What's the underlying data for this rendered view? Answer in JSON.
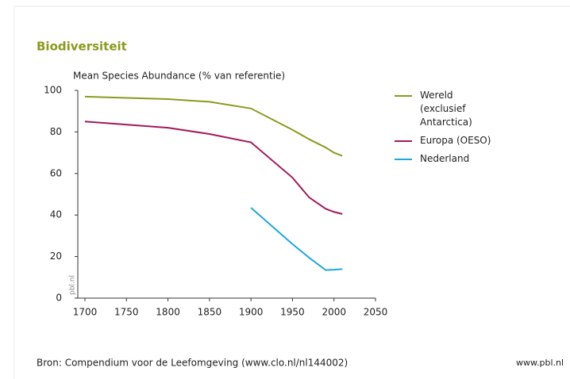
{
  "chart_data": {
    "type": "line",
    "title": "Biodiversiteit",
    "y_label": "Mean Species Abundance (% van referentie)",
    "watermark": "pbl.nl",
    "source": "Bron: Compendium voor de Leefomgeving (www.clo.nl/nl144002)",
    "footer_right": "www.pbl.nl",
    "x": [
      1700,
      1800,
      1850,
      1900,
      1950,
      1970,
      1990,
      2000,
      2010
    ],
    "series": [
      {
        "name": "Wereld (exclusief Antarctica)",
        "color": "#8c9a1e",
        "values": [
          97,
          95.8,
          94.5,
          91.3,
          81,
          76.5,
          72.5,
          70,
          68.5
        ]
      },
      {
        "name": "Europa (OESO)",
        "color": "#a3195b",
        "values": [
          85,
          82,
          79,
          75,
          58,
          48.5,
          43,
          41.5,
          40.5
        ]
      },
      {
        "name": "Nederland",
        "color": "#1ea6e0",
        "values": [
          null,
          null,
          null,
          43.5,
          26,
          19.5,
          13.5,
          13.7,
          14
        ]
      }
    ],
    "xlim": [
      1700,
      2050
    ],
    "xticks": [
      1700,
      1750,
      1800,
      1850,
      1900,
      1950,
      2000,
      2050
    ],
    "ylim": [
      0,
      100
    ],
    "yticks": [
      0,
      20,
      40,
      60,
      80,
      100
    ],
    "grid": false,
    "legend": "right"
  }
}
